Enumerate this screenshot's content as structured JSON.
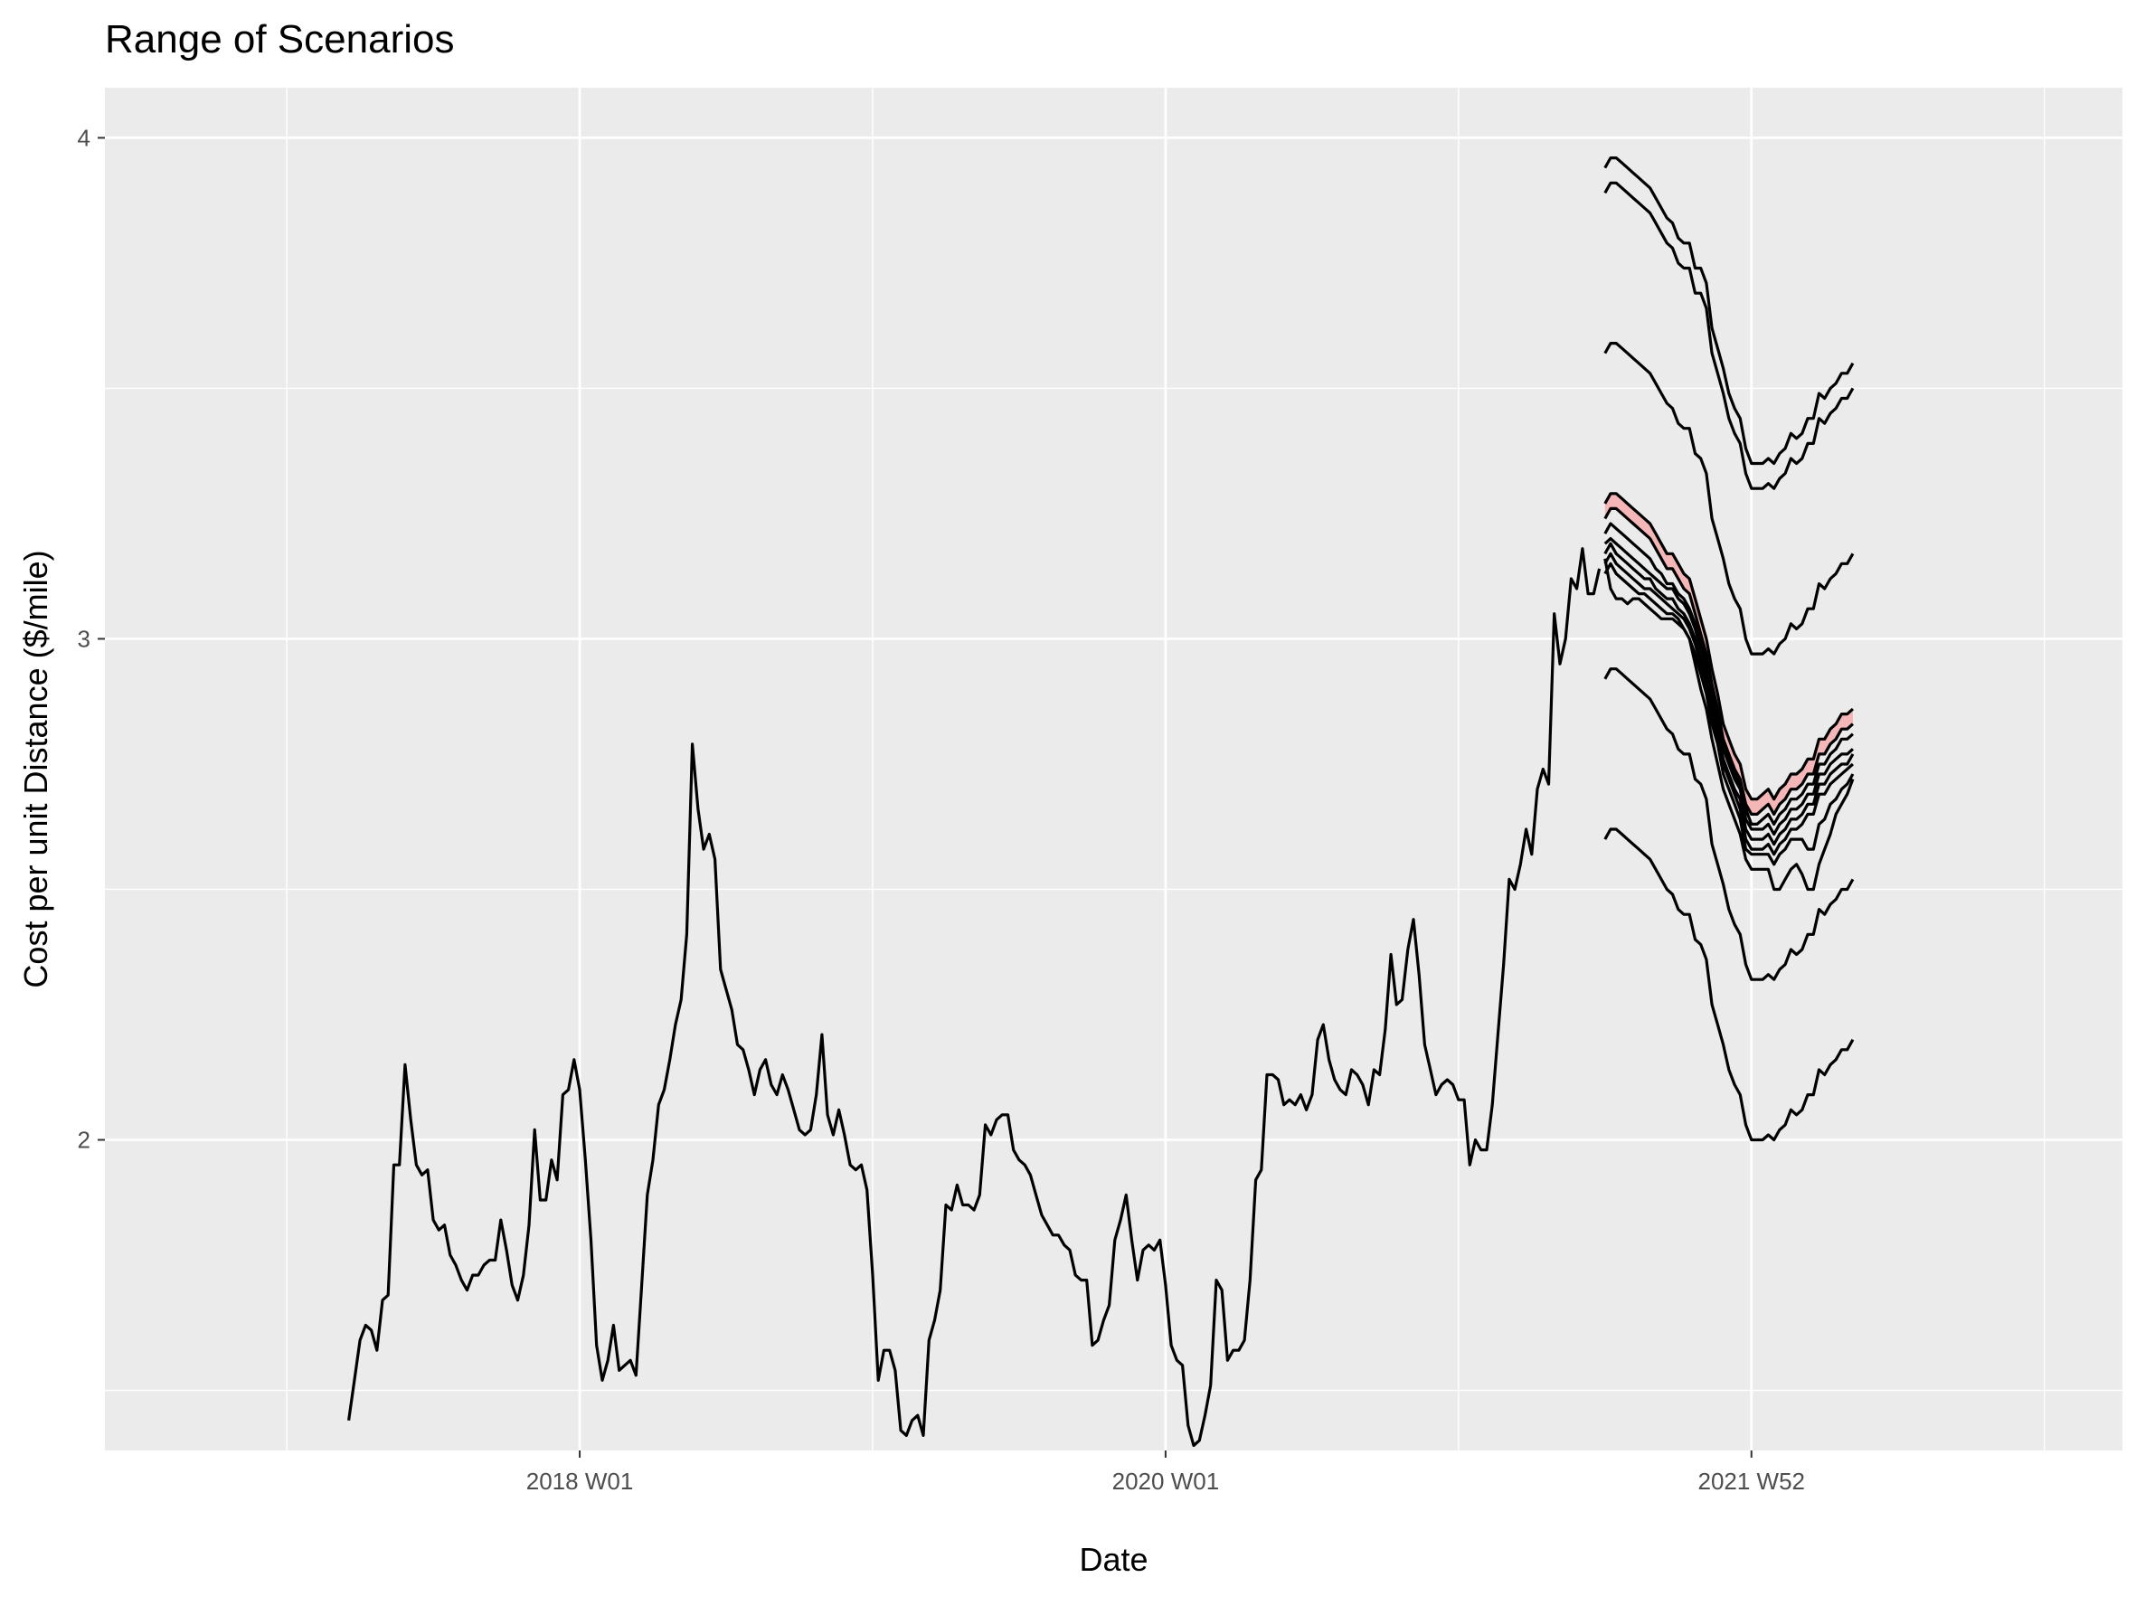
{
  "chart_data": {
    "type": "line",
    "title": "Range of Scenarios",
    "xlabel": "Date",
    "ylabel": "Cost per unit Distance ($/mile)",
    "x_ticks": [
      {
        "label": "2018 W01",
        "value": "2018-01-01"
      },
      {
        "label": "2020 W01",
        "value": "2019-12-30"
      },
      {
        "label": "2021 W52",
        "value": "2021-12-27"
      }
    ],
    "y_ticks": [
      2,
      3,
      4
    ],
    "xlim": [
      "2016-05-21",
      "2023-04-02"
    ],
    "ylim": [
      1.38,
      4.1
    ],
    "grid": true,
    "background_color": "#EBEBEB",
    "grid_color": "#FFFFFF",
    "line_color": "#000000",
    "band_color": "#F4B6B6",
    "history": {
      "start_date": "2017-03-20",
      "step_days": 7,
      "values": [
        1.44,
        1.52,
        1.6,
        1.63,
        1.62,
        1.58,
        1.68,
        1.69,
        1.95,
        1.95,
        2.15,
        2.04,
        1.95,
        1.93,
        1.94,
        1.84,
        1.82,
        1.83,
        1.77,
        1.75,
        1.72,
        1.7,
        1.73,
        1.73,
        1.75,
        1.76,
        1.76,
        1.84,
        1.78,
        1.71,
        1.68,
        1.73,
        1.83,
        2.02,
        1.88,
        1.88,
        1.96,
        1.92,
        2.09,
        2.1,
        2.16,
        2.1,
        1.96,
        1.8,
        1.59,
        1.52,
        1.56,
        1.63,
        1.54,
        1.55,
        1.56,
        1.53,
        1.71,
        1.89,
        1.96,
        2.07,
        2.1,
        2.16,
        2.23,
        2.28,
        2.41,
        2.79,
        2.66,
        2.58,
        2.61,
        2.56,
        2.34,
        2.3,
        2.26,
        2.19,
        2.18,
        2.14,
        2.09,
        2.14,
        2.16,
        2.11,
        2.09,
        2.13,
        2.1,
        2.06,
        2.02,
        2.01,
        2.02,
        2.09,
        2.21,
        2.05,
        2.01,
        2.06,
        2.01,
        1.95,
        1.94,
        1.95,
        1.9,
        1.73,
        1.52,
        1.58,
        1.58,
        1.54,
        1.42,
        1.41,
        1.44,
        1.45,
        1.41,
        1.6,
        1.64,
        1.7,
        1.87,
        1.86,
        1.91,
        1.87,
        1.87,
        1.86,
        1.89,
        2.03,
        2.01,
        2.04,
        2.05,
        2.05,
        1.98,
        1.96,
        1.95,
        1.93,
        1.89,
        1.85,
        1.83,
        1.81,
        1.81,
        1.79,
        1.78,
        1.73,
        1.72,
        1.72,
        1.59,
        1.6,
        1.64,
        1.67,
        1.8,
        1.84,
        1.89,
        1.8,
        1.72,
        1.78,
        1.79,
        1.78,
        1.8,
        1.71,
        1.59,
        1.56,
        1.55,
        1.43,
        1.39,
        1.4,
        1.45,
        1.51,
        1.72,
        1.7,
        1.56,
        1.58,
        1.58,
        1.6,
        1.72,
        1.92,
        1.94,
        2.13,
        2.13,
        2.12,
        2.07,
        2.08,
        2.07,
        2.09,
        2.06,
        2.09,
        2.2,
        2.23,
        2.16,
        2.12,
        2.1,
        2.09,
        2.14,
        2.13,
        2.11,
        2.07,
        2.14,
        2.13,
        2.22,
        2.37,
        2.27,
        2.28,
        2.38,
        2.44,
        2.33,
        2.19,
        2.14,
        2.09,
        2.11,
        2.12,
        2.11,
        2.08,
        2.08,
        1.95,
        2.0,
        1.98,
        1.98,
        2.07,
        2.21,
        2.35,
        2.52,
        2.5,
        2.55,
        2.62,
        2.57,
        2.7,
        2.74,
        2.71,
        3.05,
        2.95,
        3.0,
        3.12,
        3.1,
        3.18,
        3.09,
        3.09,
        3.14
      ]
    },
    "forecast": {
      "start_date": "2021-06-28",
      "step_days": 7,
      "band_series": [
        2,
        3
      ],
      "series": [
        {
          "values": [
            3.94,
            3.96,
            3.96,
            3.95,
            3.94,
            3.93,
            3.92,
            3.91,
            3.9,
            3.88,
            3.86,
            3.84,
            3.83,
            3.8,
            3.79,
            3.79,
            3.74,
            3.74,
            3.71,
            3.62,
            3.58,
            3.54,
            3.49,
            3.46,
            3.44,
            3.38,
            3.35,
            3.35,
            3.35,
            3.36,
            3.35,
            3.37,
            3.38,
            3.41,
            3.4,
            3.41,
            3.44,
            3.44,
            3.49,
            3.48,
            3.5,
            3.51,
            3.53,
            3.53,
            3.55
          ]
        },
        {
          "values": [
            3.89,
            3.91,
            3.91,
            3.9,
            3.89,
            3.88,
            3.87,
            3.86,
            3.85,
            3.83,
            3.81,
            3.79,
            3.78,
            3.75,
            3.74,
            3.74,
            3.69,
            3.69,
            3.66,
            3.57,
            3.53,
            3.49,
            3.44,
            3.41,
            3.39,
            3.33,
            3.3,
            3.3,
            3.3,
            3.31,
            3.3,
            3.32,
            3.33,
            3.36,
            3.35,
            3.36,
            3.39,
            3.39,
            3.44,
            3.43,
            3.45,
            3.46,
            3.48,
            3.48,
            3.5
          ]
        },
        {
          "values": [
            3.27,
            3.29,
            3.29,
            3.28,
            3.27,
            3.26,
            3.25,
            3.24,
            3.23,
            3.21,
            3.19,
            3.17,
            3.17,
            3.15,
            3.13,
            3.12,
            3.08,
            3.04,
            3.0,
            2.94,
            2.89,
            2.83,
            2.8,
            2.77,
            2.75,
            2.7,
            2.68,
            2.68,
            2.69,
            2.7,
            2.68,
            2.7,
            2.71,
            2.73,
            2.73,
            2.74,
            2.76,
            2.76,
            2.8,
            2.8,
            2.82,
            2.83,
            2.85,
            2.85,
            2.86
          ]
        },
        {
          "values": [
            3.24,
            3.26,
            3.26,
            3.25,
            3.24,
            3.23,
            3.22,
            3.21,
            3.2,
            3.18,
            3.16,
            3.14,
            3.14,
            3.12,
            3.1,
            3.09,
            3.05,
            3.01,
            2.97,
            2.91,
            2.86,
            2.8,
            2.77,
            2.74,
            2.72,
            2.67,
            2.65,
            2.65,
            2.66,
            2.67,
            2.65,
            2.67,
            2.68,
            2.7,
            2.7,
            2.71,
            2.73,
            2.73,
            2.77,
            2.77,
            2.79,
            2.8,
            2.82,
            2.82,
            2.83
          ]
        },
        {
          "values": [
            3.21,
            3.23,
            3.22,
            3.21,
            3.2,
            3.19,
            3.18,
            3.17,
            3.16,
            3.14,
            3.13,
            3.11,
            3.11,
            3.09,
            3.08,
            3.06,
            3.03,
            2.99,
            2.95,
            2.89,
            2.85,
            2.79,
            2.76,
            2.73,
            2.71,
            2.66,
            2.63,
            2.63,
            2.64,
            2.65,
            2.63,
            2.65,
            2.66,
            2.68,
            2.68,
            2.69,
            2.71,
            2.71,
            2.75,
            2.75,
            2.77,
            2.78,
            2.8,
            2.8,
            2.81
          ]
        },
        {
          "values": [
            3.19,
            3.2,
            3.19,
            3.18,
            3.17,
            3.16,
            3.15,
            3.14,
            3.13,
            3.12,
            3.11,
            3.1,
            3.1,
            3.08,
            3.07,
            3.05,
            3.02,
            2.98,
            2.94,
            2.88,
            2.83,
            2.78,
            2.75,
            2.72,
            2.7,
            2.64,
            2.62,
            2.62,
            2.62,
            2.63,
            2.61,
            2.63,
            2.64,
            2.66,
            2.66,
            2.67,
            2.69,
            2.69,
            2.73,
            2.73,
            2.75,
            2.76,
            2.77,
            2.77,
            2.78
          ]
        },
        {
          "values": [
            3.17,
            3.19,
            3.17,
            3.16,
            3.15,
            3.14,
            3.13,
            3.12,
            3.12,
            3.1,
            3.09,
            3.08,
            3.08,
            3.06,
            3.05,
            3.03,
            3.0,
            2.96,
            2.92,
            2.86,
            2.81,
            2.76,
            2.73,
            2.7,
            2.68,
            2.62,
            2.6,
            2.6,
            2.6,
            2.61,
            2.59,
            2.61,
            2.62,
            2.64,
            2.64,
            2.65,
            2.67,
            2.67,
            2.71,
            2.71,
            2.73,
            2.74,
            2.75,
            2.75,
            2.77
          ]
        },
        {
          "values": [
            3.15,
            3.17,
            3.15,
            3.14,
            3.13,
            3.12,
            3.11,
            3.1,
            3.1,
            3.09,
            3.08,
            3.07,
            3.06,
            3.05,
            3.04,
            3.02,
            2.99,
            2.95,
            2.91,
            2.85,
            2.8,
            2.75,
            2.72,
            2.69,
            2.66,
            2.6,
            2.58,
            2.58,
            2.58,
            2.59,
            2.57,
            2.59,
            2.6,
            2.62,
            2.62,
            2.63,
            2.65,
            2.65,
            2.69,
            2.69,
            2.71,
            2.72,
            2.73,
            2.74,
            2.75
          ]
        },
        {
          "values": [
            3.13,
            3.15,
            3.13,
            3.12,
            3.11,
            3.1,
            3.09,
            3.09,
            3.08,
            3.07,
            3.06,
            3.05,
            3.05,
            3.04,
            3.02,
            3.0,
            2.97,
            2.93,
            2.89,
            2.83,
            2.79,
            2.73,
            2.7,
            2.67,
            2.64,
            2.58,
            2.57,
            2.57,
            2.57,
            2.57,
            2.55,
            2.57,
            2.58,
            2.6,
            2.6,
            2.6,
            2.58,
            2.58,
            2.63,
            2.64,
            2.67,
            2.68,
            2.7,
            2.71,
            2.73
          ]
        },
        {
          "values": [
            3.16,
            3.1,
            3.08,
            3.08,
            3.07,
            3.08,
            3.08,
            3.07,
            3.06,
            3.05,
            3.04,
            3.04,
            3.04,
            3.03,
            3.02,
            3.0,
            2.95,
            2.9,
            2.86,
            2.8,
            2.75,
            2.7,
            2.67,
            2.64,
            2.61,
            2.56,
            2.54,
            2.54,
            2.54,
            2.54,
            2.5,
            2.5,
            2.52,
            2.54,
            2.55,
            2.53,
            2.5,
            2.5,
            2.55,
            2.58,
            2.61,
            2.65,
            2.67,
            2.69,
            2.72
          ]
        },
        {
          "values": [
            3.57,
            3.59,
            3.59,
            3.58,
            3.57,
            3.56,
            3.55,
            3.54,
            3.53,
            3.51,
            3.49,
            3.47,
            3.46,
            3.43,
            3.42,
            3.42,
            3.37,
            3.36,
            3.33,
            3.24,
            3.2,
            3.16,
            3.11,
            3.08,
            3.06,
            3.0,
            2.97,
            2.97,
            2.97,
            2.98,
            2.97,
            2.99,
            3.0,
            3.03,
            3.02,
            3.03,
            3.06,
            3.06,
            3.11,
            3.1,
            3.12,
            3.13,
            3.15,
            3.15,
            3.17
          ]
        },
        {
          "values": [
            2.92,
            2.94,
            2.94,
            2.93,
            2.92,
            2.91,
            2.9,
            2.89,
            2.88,
            2.86,
            2.84,
            2.82,
            2.81,
            2.78,
            2.77,
            2.77,
            2.72,
            2.71,
            2.68,
            2.59,
            2.55,
            2.51,
            2.46,
            2.43,
            2.41,
            2.35,
            2.32,
            2.32,
            2.32,
            2.33,
            2.32,
            2.34,
            2.35,
            2.38,
            2.37,
            2.38,
            2.41,
            2.41,
            2.46,
            2.45,
            2.47,
            2.48,
            2.5,
            2.5,
            2.52
          ]
        },
        {
          "values": [
            2.6,
            2.62,
            2.62,
            2.61,
            2.6,
            2.59,
            2.58,
            2.57,
            2.56,
            2.54,
            2.52,
            2.5,
            2.49,
            2.46,
            2.45,
            2.45,
            2.4,
            2.39,
            2.36,
            2.27,
            2.23,
            2.19,
            2.14,
            2.11,
            2.09,
            2.03,
            2.0,
            2.0,
            2.0,
            2.01,
            2.0,
            2.02,
            2.03,
            2.06,
            2.05,
            2.06,
            2.09,
            2.09,
            2.14,
            2.13,
            2.15,
            2.16,
            2.18,
            2.18,
            2.2
          ]
        }
      ]
    }
  }
}
